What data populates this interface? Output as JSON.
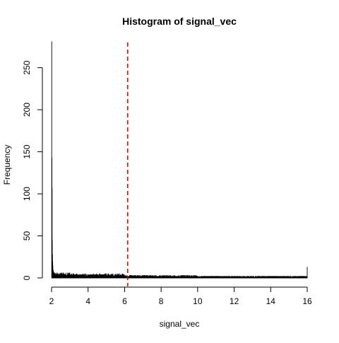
{
  "chart_data": {
    "type": "histogram",
    "title": "Histogram of signal_vec",
    "xlabel": "signal_vec",
    "ylabel": "Frequency",
    "xlim": [
      2,
      16
    ],
    "ylim": [
      0,
      280
    ],
    "x_ticks": [
      "2",
      "4",
      "6",
      "8",
      "10",
      "12",
      "14",
      "16"
    ],
    "y_ticks": [
      "0",
      "50",
      "100",
      "150",
      "200",
      "250"
    ],
    "bin_width": 0.01,
    "grid": false,
    "reference_line": {
      "x": 6.17,
      "style": "dashed",
      "color": "#cc0000"
    },
    "bars_color": "#000000",
    "notable_bins": [
      {
        "x": 2.0,
        "y": 281
      },
      {
        "x": 2.01,
        "y": 143
      },
      {
        "x": 2.02,
        "y": 107
      },
      {
        "x": 2.03,
        "y": 45
      },
      {
        "x": 2.04,
        "y": 28
      },
      {
        "x": 2.05,
        "y": 20
      },
      {
        "x": 2.06,
        "y": 15
      },
      {
        "x": 2.07,
        "y": 11
      },
      {
        "x": 2.08,
        "y": 9
      },
      {
        "x": 2.09,
        "y": 8
      },
      {
        "x": 2.1,
        "y": 7
      },
      {
        "x": 15.99,
        "y": 13
      }
    ],
    "tail_profile": [
      {
        "x_start": 2.1,
        "x_end": 3.0,
        "approx_count": 4
      },
      {
        "x_start": 3.0,
        "x_end": 6.0,
        "approx_count": 3
      },
      {
        "x_start": 6.0,
        "x_end": 10.0,
        "approx_count": 2
      },
      {
        "x_start": 10.0,
        "x_end": 15.99,
        "approx_count": 1.5
      }
    ]
  }
}
